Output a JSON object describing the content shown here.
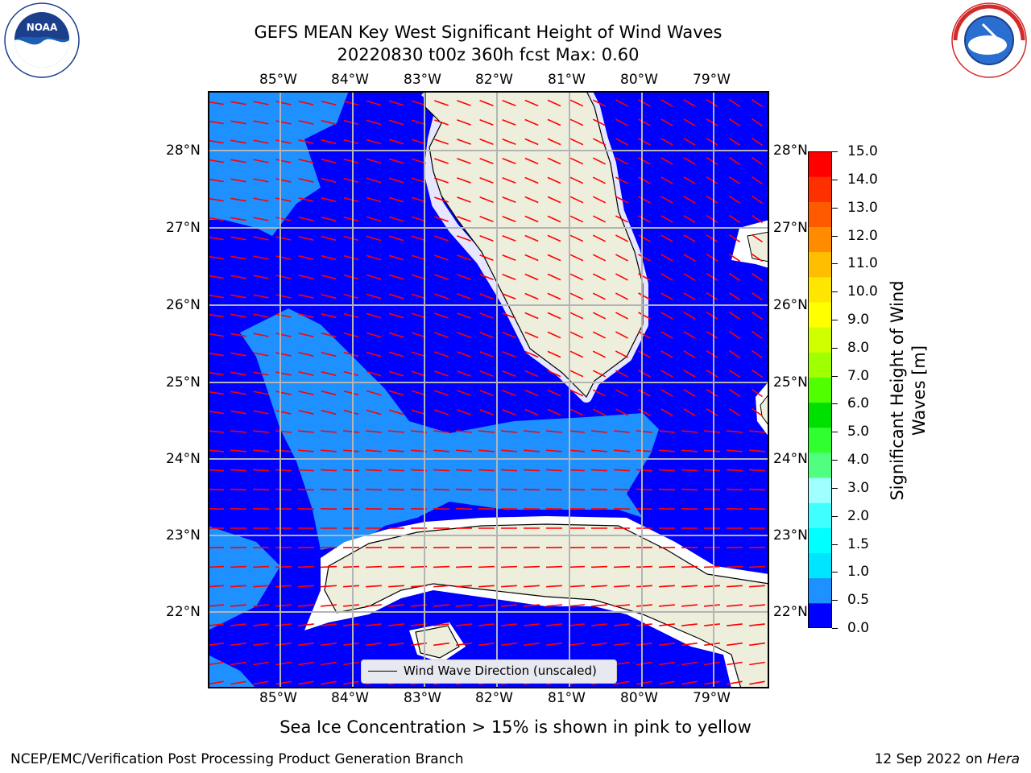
{
  "title_line1": "GEFS MEAN Key West Significant Height of Wind Waves",
  "title_line2": "20220830 t00z 360h fcst   Max: 0.60",
  "logos": {
    "left": {
      "name": "noaa-logo",
      "text": "NOAA",
      "ring_text": "NATIONAL OCEANIC AND ATMOSPHERIC ADMINISTRATION · U.S. DEPARTMENT OF COMMERCE"
    },
    "right": {
      "name": "nws-logo",
      "ring_text": "NATIONAL WEATHER SERVICE"
    }
  },
  "map": {
    "lon_labels": [
      "85°W",
      "84°W",
      "83°W",
      "82°W",
      "81°W",
      "80°W",
      "79°W"
    ],
    "lat_labels": [
      "28°N",
      "27°N",
      "26°N",
      "25°N",
      "24°N",
      "23°N",
      "22°N"
    ],
    "legend_label": "Wind Wave Direction (unscaled)",
    "colors": {
      "ocean_low": "#0000ff",
      "ocean_mid": "#1e90ff",
      "land": "#eeeedd",
      "arrow": "#ff0000",
      "grid": "#b4b4b4"
    }
  },
  "colorbar": {
    "label": "Significant Height of Wind Waves [m]",
    "label_line1": "Significant Height of Wind",
    "label_line2": "Waves [m]",
    "ticks": [
      "15.0",
      "14.0",
      "13.0",
      "12.0",
      "11.0",
      "10.0",
      "9.0",
      "8.0",
      "7.0",
      "6.0",
      "5.0",
      "4.0",
      "3.0",
      "2.0",
      "1.5",
      "1.0",
      "0.5",
      "0.0"
    ],
    "colors": [
      "#0000ff",
      "#1e90ff",
      "#00e5ff",
      "#00ffff",
      "#40ffff",
      "#a0ffff",
      "#50ff80",
      "#30ff30",
      "#00e000",
      "#50ff00",
      "#a0ff00",
      "#d0ff00",
      "#ffff00",
      "#ffe600",
      "#ffbe00",
      "#ff8c00",
      "#ff5a00",
      "#ff3000",
      "#ff0000"
    ]
  },
  "notes": {
    "sea_ice": "Sea Ice Concentration > 15% is shown in pink to yellow",
    "footer_left": "NCEP/EMC/Verification Post Processing Product Generation Branch",
    "footer_date": "12 Sep 2022 on ",
    "footer_host": "Hera"
  }
}
